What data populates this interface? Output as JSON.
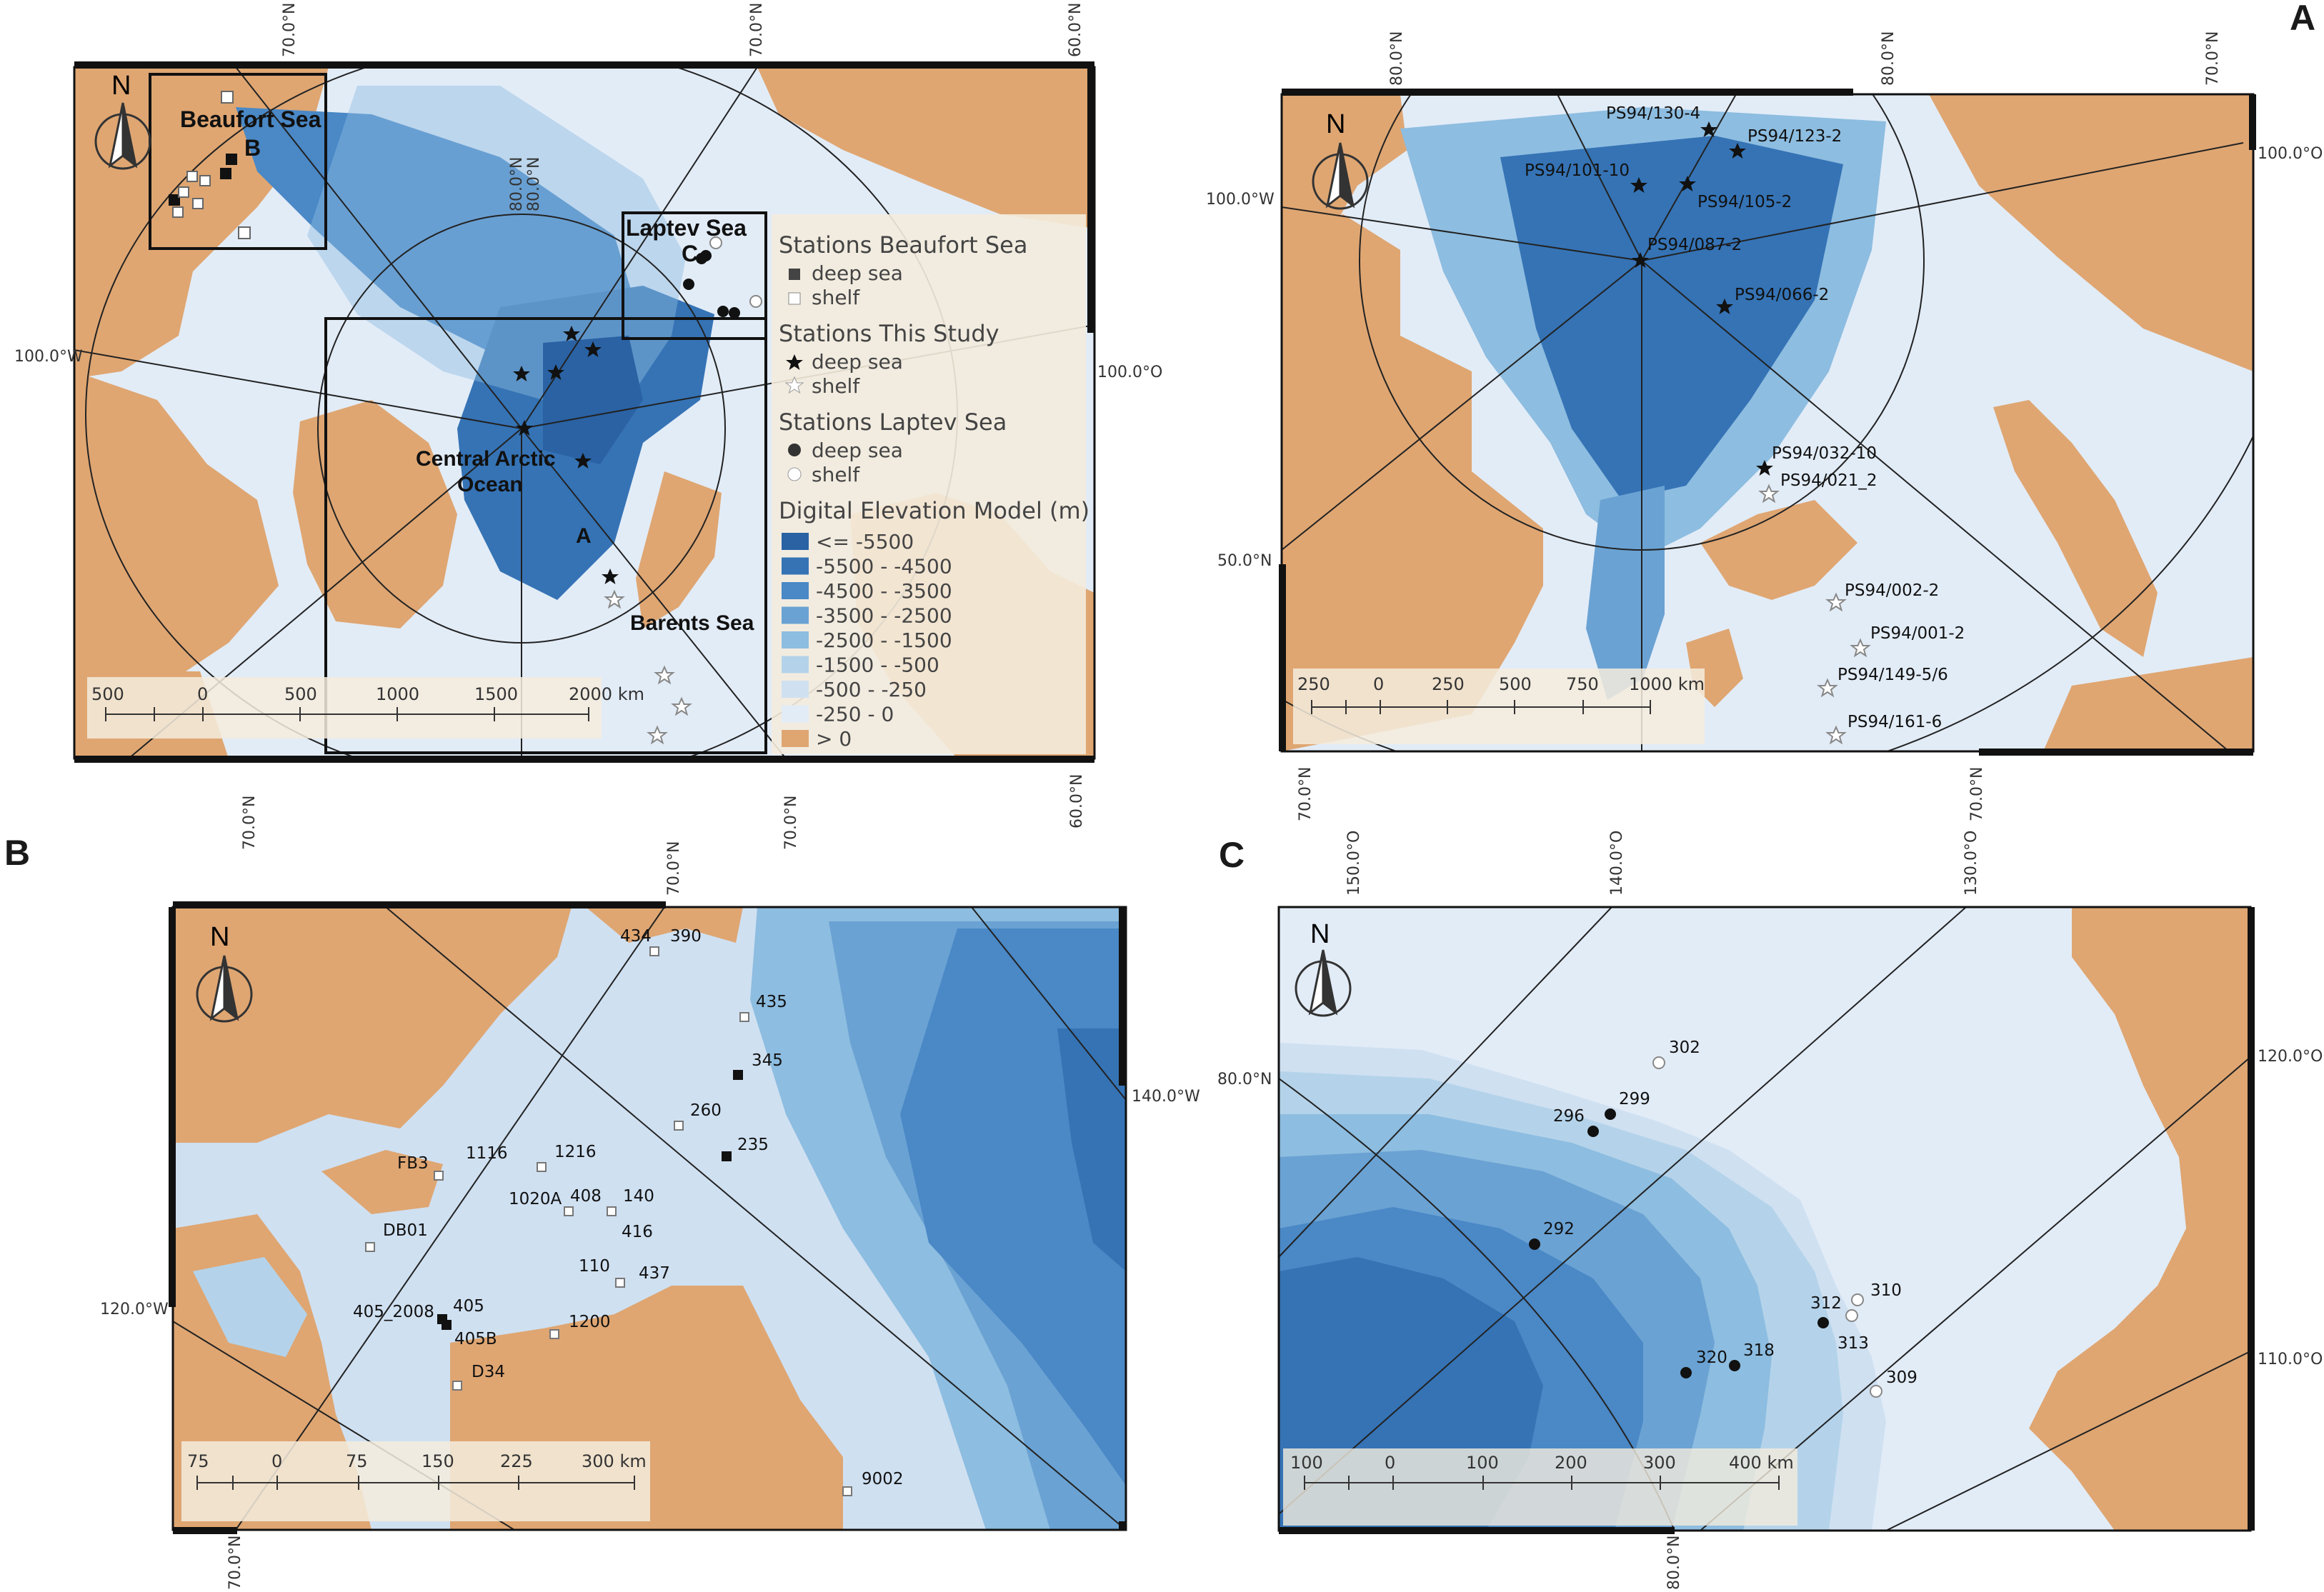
{
  "panel_letters": {
    "a": "A",
    "b": "B",
    "c": "C"
  },
  "overview": {
    "north_label": "N",
    "coords": {
      "top_70n": "70.0°N",
      "top_70n_b": "70.0°N",
      "top_60n": "60.0°N",
      "bot_70n": "70.0°N",
      "bot_70n_b": "70.0°N",
      "bot_60n": "60.0°N",
      "left_100w": "100.0°W",
      "right_100o": "100.0°O",
      "inner_80n_a": "80.0°N",
      "inner_80n_b": "80.0°N"
    },
    "region_labels": {
      "beaufort": "Beaufort Sea",
      "beaufort_letter": "B",
      "laptev": "Laptev Sea",
      "laptev_letter": "C",
      "central_1": "Central Arctic",
      "central_2": "Ocean",
      "central_letter": "A",
      "barents": "Barents Sea"
    },
    "scale": [
      "500",
      "0",
      "500",
      "1000",
      "1500",
      "2000 km"
    ],
    "legend": {
      "beaufort_title": "Stations Beaufort Sea",
      "beaufort_deep": "deep sea",
      "beaufort_shelf": "shelf",
      "study_title": "Stations This Study",
      "study_deep": "deep sea",
      "study_shelf": "shelf",
      "laptev_title": "Stations Laptev Sea",
      "laptev_deep": "deep sea",
      "laptev_shelf": "shelf",
      "dem_title": "Digital Elevation Model (m)",
      "classes": [
        {
          "label": "<= -5500",
          "color": "#2a62a4"
        },
        {
          "label": "-5500 - -4500",
          "color": "#3573b5"
        },
        {
          "label": "-4500 - -3500",
          "color": "#4a88c6"
        },
        {
          "label": "-3500 - -2500",
          "color": "#6aa2d3"
        },
        {
          "label": "-2500 - -1500",
          "color": "#8dbde0"
        },
        {
          "label": "-1500 - -500",
          "color": "#b4d3ea"
        },
        {
          "label": "-500 - -250",
          "color": "#cfe0f1"
        },
        {
          "label": "-250 - 0",
          "color": "#e2ecf7"
        },
        {
          "label": "> 0",
          "color": "#dfa672"
        }
      ]
    }
  },
  "panel_a": {
    "north_label": "N",
    "coords": {
      "top_80n": "80.0°N",
      "top_80n_b": "80.0°N",
      "top_70n": "70.0°N",
      "left_100w": "100.0°W",
      "right_100o": "100.0°O",
      "left_50n": "50.0°N",
      "bot_70n": "70.0°N",
      "bot_70n_b": "70.0°N"
    },
    "stations": [
      "PS94/130-4",
      "PS94/123-2",
      "PS94/101-10",
      "PS94/105-2",
      "PS94/087-2",
      "PS94/066-2",
      "PS94/032-10",
      "PS94/021_2",
      "PS94/002-2",
      "PS94/001-2",
      "PS94/149-5/6",
      "PS94/161-6"
    ],
    "scale": [
      "250",
      "0",
      "250",
      "500",
      "750",
      "1000 km"
    ]
  },
  "panel_b": {
    "north_label": "N",
    "coords": {
      "top_70n": "70.0°N",
      "right_140w": "140.0°W",
      "left_120w": "120.0°W",
      "bot_70n": "70.0°N"
    },
    "stations": [
      "434",
      "390",
      "435",
      "345",
      "260",
      "235",
      "FB3",
      "1116",
      "1216",
      "1020A",
      "408",
      "140",
      "416",
      "DB01",
      "110",
      "437",
      "405_2008",
      "405",
      "405B",
      "1200",
      "D34",
      "9002"
    ],
    "scale": [
      "75",
      "0",
      "75",
      "150",
      "225",
      "300 km"
    ]
  },
  "panel_c": {
    "north_label": "N",
    "coords": {
      "top_150o": "150.0°O",
      "top_140o": "140.0°O",
      "top_130o": "130.0°O",
      "left_80n": "80.0°N",
      "right_120o": "120.0°O",
      "right_110o": "110.0°O",
      "bot_80n": "80.0°N"
    },
    "stations": [
      "302",
      "299",
      "296",
      "292",
      "312",
      "310",
      "313",
      "320",
      "318",
      "309"
    ],
    "scale": [
      "100",
      "0",
      "100",
      "200",
      "300",
      "400 km"
    ]
  },
  "colors": {
    "land": "#dfa672",
    "ocean_light": "#e2ecf7",
    "ocean_shelf": "#cfe0f1",
    "ocean_mid": "#b4d3ea",
    "ocean_deep": "#4a88c6",
    "ocean_deepest": "#2a62a4"
  }
}
